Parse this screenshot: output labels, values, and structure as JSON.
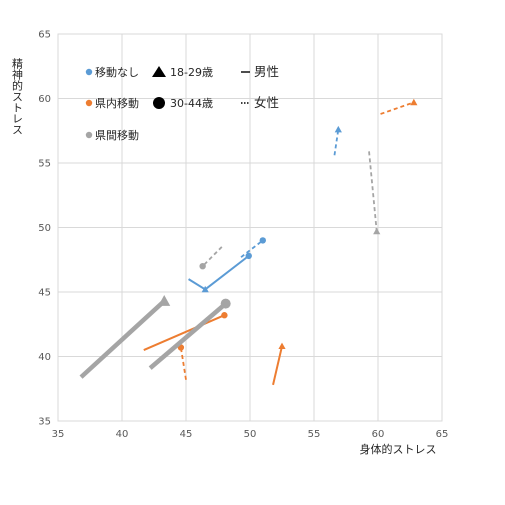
{
  "chart_data": {
    "type": "scatter",
    "xlabel": "身体的ストレス",
    "ylabel": "精神的ストレス",
    "xlim": [
      35,
      65
    ],
    "ylim": [
      35,
      65
    ],
    "xticks": [
      "35",
      "40",
      "45",
      "50",
      "55",
      "60",
      "65"
    ],
    "yticks": [
      "35",
      "40",
      "45",
      "50",
      "55",
      "60",
      "65"
    ],
    "grid": true,
    "colors": {
      "移動なし": "#5b9bd5",
      "県内移動": "#ed7d31",
      "県間移動": "#a5a5a5"
    },
    "legend": {
      "placement": "top-left",
      "groups": [
        {
          "label": "移動なし",
          "color": "#5b9bd5"
        },
        {
          "label": "県内移動",
          "color": "#ed7d31"
        },
        {
          "label": "県間移動",
          "color": "#a5a5a5"
        }
      ],
      "ages": [
        {
          "label": "18-29歳",
          "marker": "triangle"
        },
        {
          "label": "30-44歳",
          "marker": "circle"
        }
      ],
      "sexes": [
        {
          "label": "男性",
          "style": "solid"
        },
        {
          "label": "女性",
          "style": "dotted"
        }
      ]
    },
    "series": [
      {
        "name": "移動なし 18-29歳 男性",
        "group": "移動なし",
        "age": "18-29歳",
        "sex": "男性",
        "start": [
          45.2,
          46.0
        ],
        "end": [
          46.5,
          45.2
        ],
        "large": false
      },
      {
        "name": "移動なし 18-29歳 女性",
        "group": "移動なし",
        "age": "18-29歳",
        "sex": "女性",
        "start": [
          56.6,
          55.6
        ],
        "end": [
          56.9,
          57.6
        ],
        "large": false
      },
      {
        "name": "移動なし 30-44歳 男性",
        "group": "移動なし",
        "age": "30-44歳",
        "sex": "男性",
        "start": [
          46.5,
          45.2
        ],
        "end": [
          49.9,
          47.8
        ],
        "large": false
      },
      {
        "name": "移動なし 30-44歳 女性",
        "group": "移動なし",
        "age": "30-44歳",
        "sex": "女性",
        "start": [
          49.3,
          47.7
        ],
        "end": [
          51.0,
          49.0
        ],
        "large": false
      },
      {
        "name": "県内移動 18-29歳 男性",
        "group": "県内移動",
        "age": "18-29歳",
        "sex": "男性",
        "start": [
          51.8,
          37.8
        ],
        "end": [
          52.5,
          40.8
        ],
        "large": false
      },
      {
        "name": "県内移動 18-29歳 女性",
        "group": "県内移動",
        "age": "18-29歳",
        "sex": "女性",
        "start": [
          60.2,
          58.8
        ],
        "end": [
          62.8,
          59.7
        ],
        "large": false
      },
      {
        "name": "県内移動 30-44歳 男性",
        "group": "県内移動",
        "age": "30-44歳",
        "sex": "男性",
        "start": [
          41.7,
          40.5
        ],
        "end": [
          48.0,
          43.2
        ],
        "large": false
      },
      {
        "name": "県内移動 30-44歳 女性",
        "group": "県内移動",
        "age": "30-44歳",
        "sex": "女性",
        "start": [
          45.0,
          38.2
        ],
        "end": [
          44.6,
          40.7
        ],
        "large": false
      },
      {
        "name": "県間移動 18-29歳 男性",
        "group": "県間移動",
        "age": "18-29歳",
        "sex": "男性",
        "start": [
          36.8,
          38.4
        ],
        "end": [
          43.3,
          44.3
        ],
        "large": true
      },
      {
        "name": "県間移動 18-29歳 女性",
        "group": "県間移動",
        "age": "18-29歳",
        "sex": "女性",
        "start": [
          59.3,
          55.9
        ],
        "end": [
          59.9,
          49.7
        ],
        "large": false
      },
      {
        "name": "県間移動 30-44歳 男性",
        "group": "県間移動",
        "age": "30-44歳",
        "sex": "男性",
        "start": [
          42.2,
          39.1
        ],
        "end": [
          48.1,
          44.1
        ],
        "large": true
      },
      {
        "name": "県間移動 30-44歳 女性",
        "group": "県間移動",
        "age": "30-44歳",
        "sex": "女性",
        "start": [
          47.8,
          48.5
        ],
        "end": [
          46.3,
          47.0
        ],
        "large": false
      }
    ]
  }
}
